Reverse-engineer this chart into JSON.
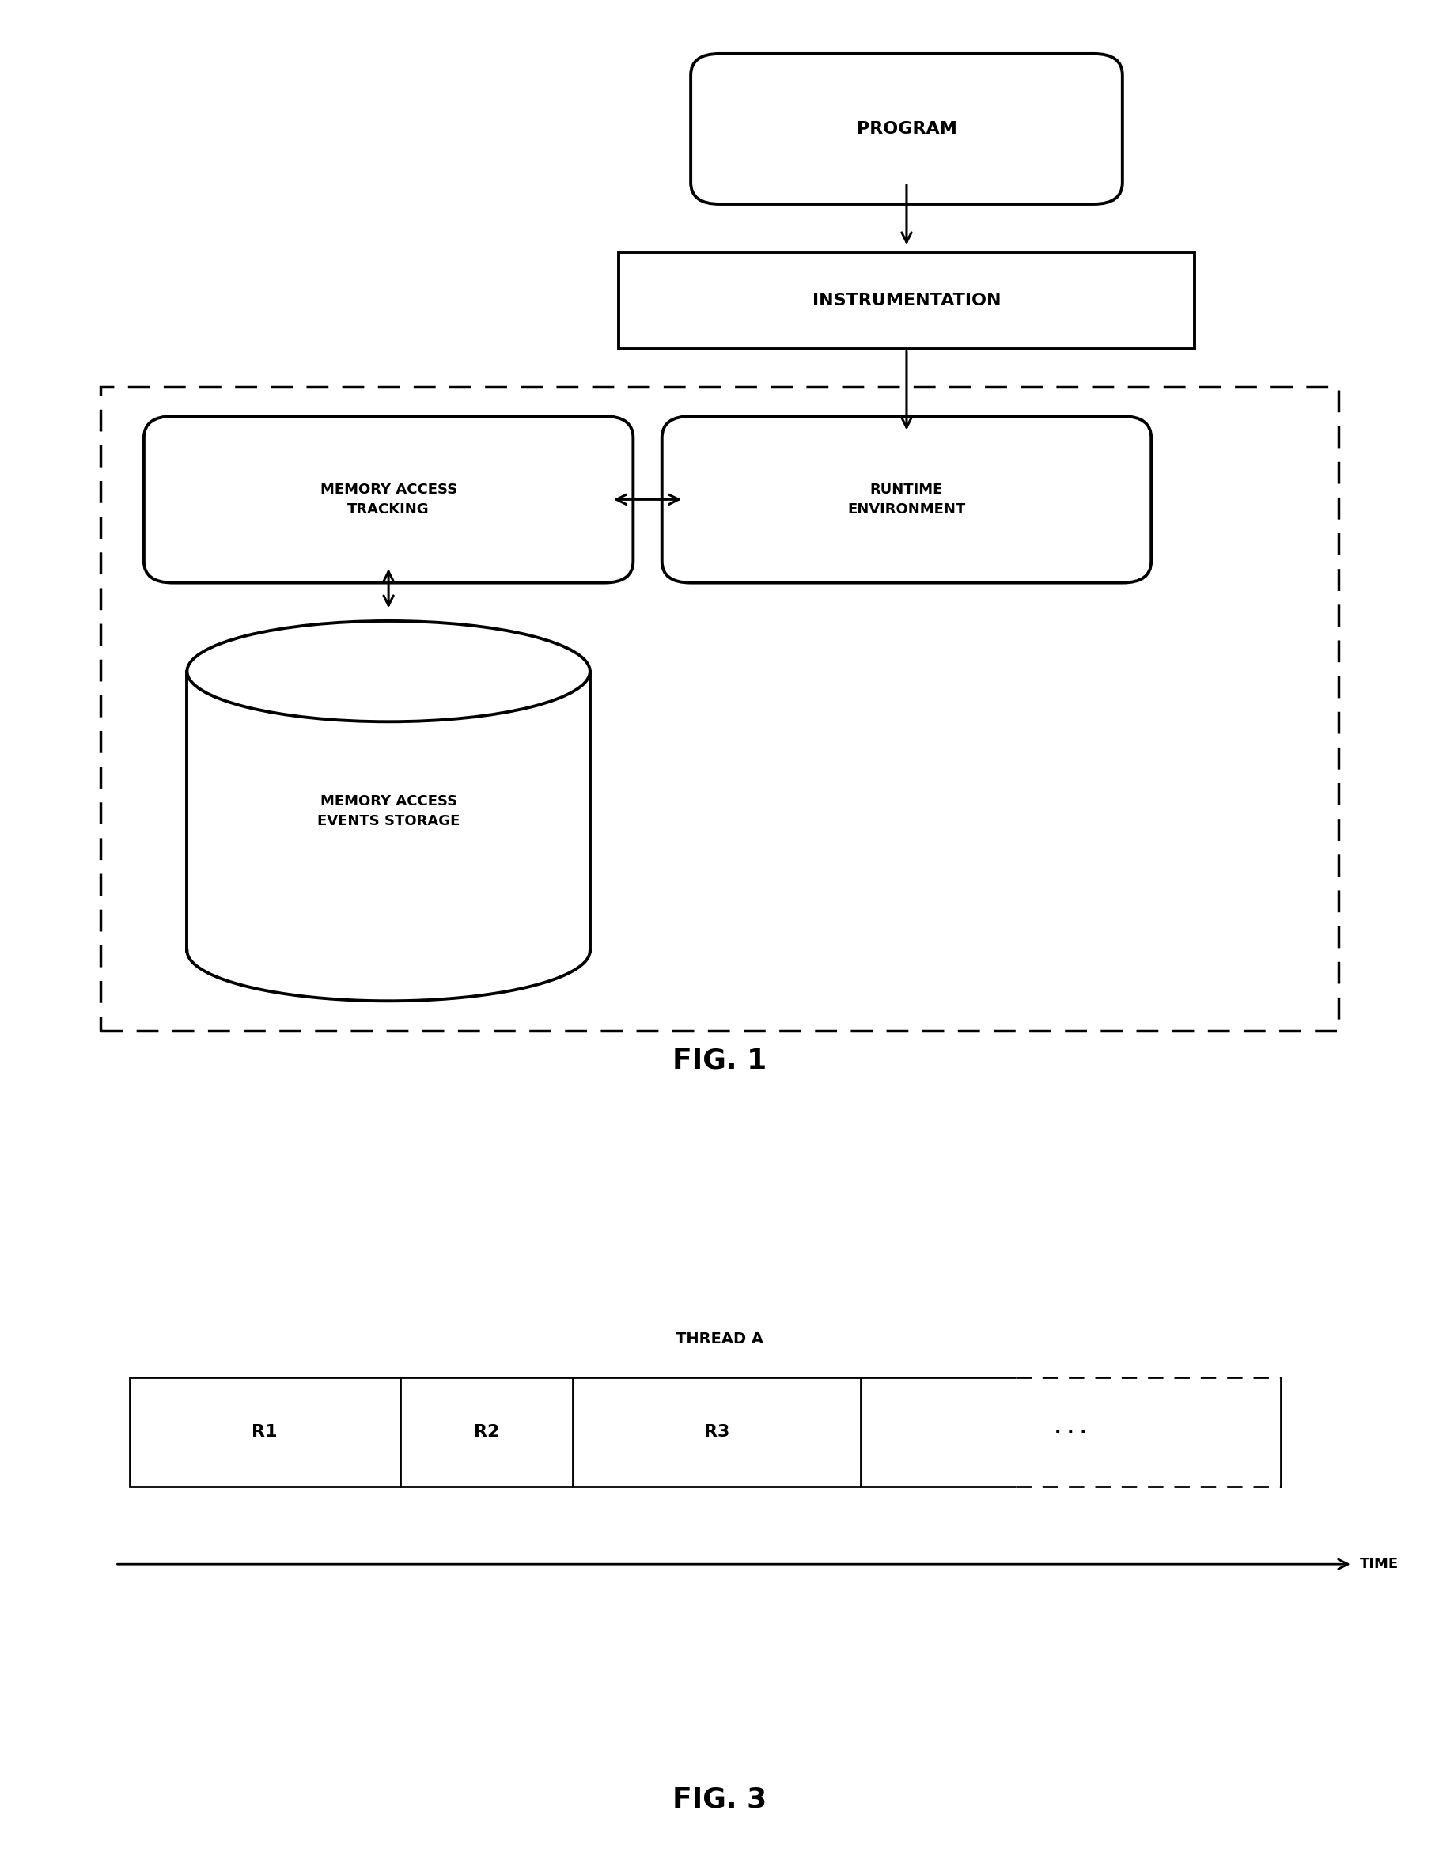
{
  "bg_color": "#ffffff",
  "line_color": "#000000",
  "fig1": {
    "program_label": "PROGRAM",
    "instrumentation_label": "INSTRUMENTATION",
    "mat_label": "MEMORY ACCESS\nTRACKING",
    "re_label": "RUNTIME\nENVIRONMENT",
    "cyl_label": "MEMORY ACCESS\nEVENTS STORAGE",
    "fig_label": "FIG. 1"
  },
  "fig3": {
    "thread_label": "THREAD A",
    "seg_labels": [
      "R1",
      "R2",
      "R3",
      "· · ·"
    ],
    "seg_bounds": [
      0.0,
      0.235,
      0.385,
      0.635,
      1.0
    ],
    "time_label": "TIME",
    "fig_label": "FIG. 3"
  }
}
